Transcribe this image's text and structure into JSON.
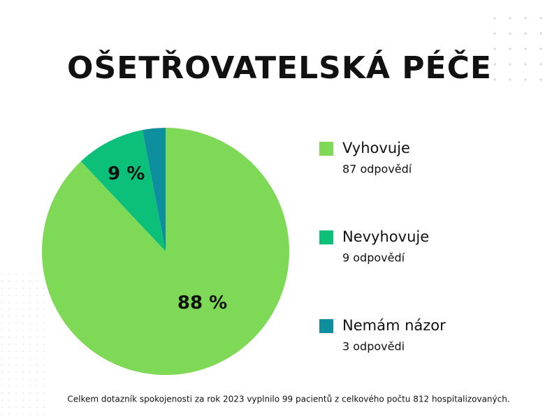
{
  "chart_data": {
    "type": "pie",
    "title": "OŠETŘOVATELSKÁ PÉČE",
    "categories": [
      "Vyhovuje",
      "Nevyhovuje",
      "Nemám názor"
    ],
    "values": [
      88,
      9,
      3
    ],
    "value_labels": [
      "88 %",
      "9 %",
      null
    ],
    "responses": [
      "87 odpovědí",
      "9 odpovědí",
      "3 odpovědi"
    ],
    "colors": [
      "#7ed957",
      "#0cc07a",
      "#0e8f9e"
    ],
    "note": "Celkem dotazník spokojenosti za rok  2023 vyplnilo 99 pacientů z celkového počtu 812 hospitalizovaných."
  }
}
